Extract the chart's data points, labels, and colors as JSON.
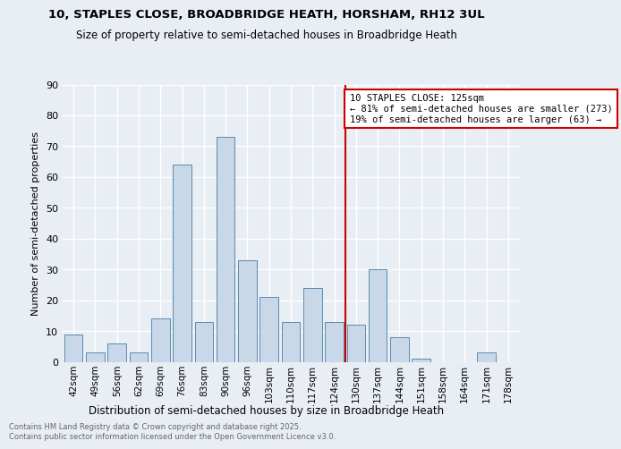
{
  "title": "10, STAPLES CLOSE, BROADBRIDGE HEATH, HORSHAM, RH12 3UL",
  "subtitle": "Size of property relative to semi-detached houses in Broadbridge Heath",
  "xlabel": "Distribution of semi-detached houses by size in Broadbridge Heath",
  "ylabel": "Number of semi-detached properties",
  "footer_line1": "Contains HM Land Registry data © Crown copyright and database right 2025.",
  "footer_line2": "Contains public sector information licensed under the Open Government Licence v3.0.",
  "categories": [
    "42sqm",
    "49sqm",
    "56sqm",
    "62sqm",
    "69sqm",
    "76sqm",
    "83sqm",
    "90sqm",
    "96sqm",
    "103sqm",
    "110sqm",
    "117sqm",
    "124sqm",
    "130sqm",
    "137sqm",
    "144sqm",
    "151sqm",
    "158sqm",
    "164sqm",
    "171sqm",
    "178sqm"
  ],
  "values": [
    9,
    3,
    6,
    3,
    14,
    64,
    13,
    73,
    33,
    21,
    13,
    24,
    13,
    12,
    30,
    8,
    1,
    0,
    0,
    3,
    0
  ],
  "bar_color": "#c8d8e8",
  "bar_edge_color": "#5a8ab0",
  "background_color": "#e8eef4",
  "grid_color": "#ffffff",
  "vline_color": "#cc0000",
  "annotation_text": "10 STAPLES CLOSE: 125sqm\n← 81% of semi-detached houses are smaller (273)\n19% of semi-detached houses are larger (63) →",
  "annotation_box_color": "#cc0000",
  "ylim": [
    0,
    90
  ],
  "yticks": [
    0,
    10,
    20,
    30,
    40,
    50,
    60,
    70,
    80,
    90
  ]
}
